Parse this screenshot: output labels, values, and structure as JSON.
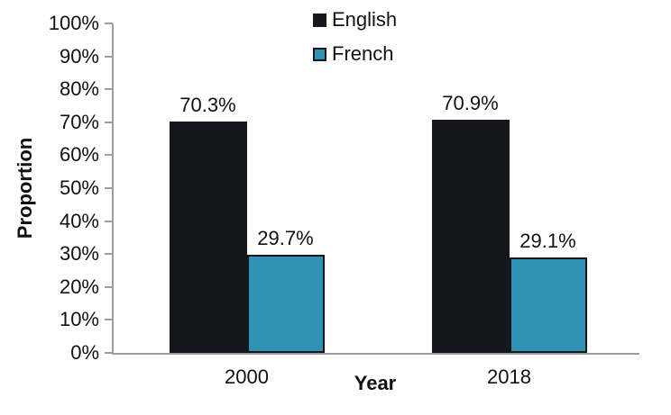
{
  "chart_data": {
    "type": "bar",
    "title": "",
    "xlabel": "Year",
    "ylabel": "Proportion",
    "categories": [
      "2000",
      "2018"
    ],
    "series": [
      {
        "name": "English",
        "color": "#14181c",
        "border_color": "#14181c",
        "values": [
          70.3,
          70.9
        ],
        "labels": [
          "70.3%",
          "70.9%"
        ]
      },
      {
        "name": "French",
        "color": "#3093b5",
        "border_color": "#10161b",
        "values": [
          29.7,
          29.1
        ],
        "labels": [
          "29.7%",
          "29.1%"
        ]
      }
    ],
    "ylim": [
      0,
      100
    ],
    "ytick_step": 10,
    "yticks": [
      "0%",
      "10%",
      "20%",
      "30%",
      "40%",
      "50%",
      "60%",
      "70%",
      "80%",
      "90%",
      "100%"
    ],
    "grid": false,
    "legend_position": "top-center",
    "axis_color": "#9e9e9e",
    "background_color": "#ffffff"
  }
}
